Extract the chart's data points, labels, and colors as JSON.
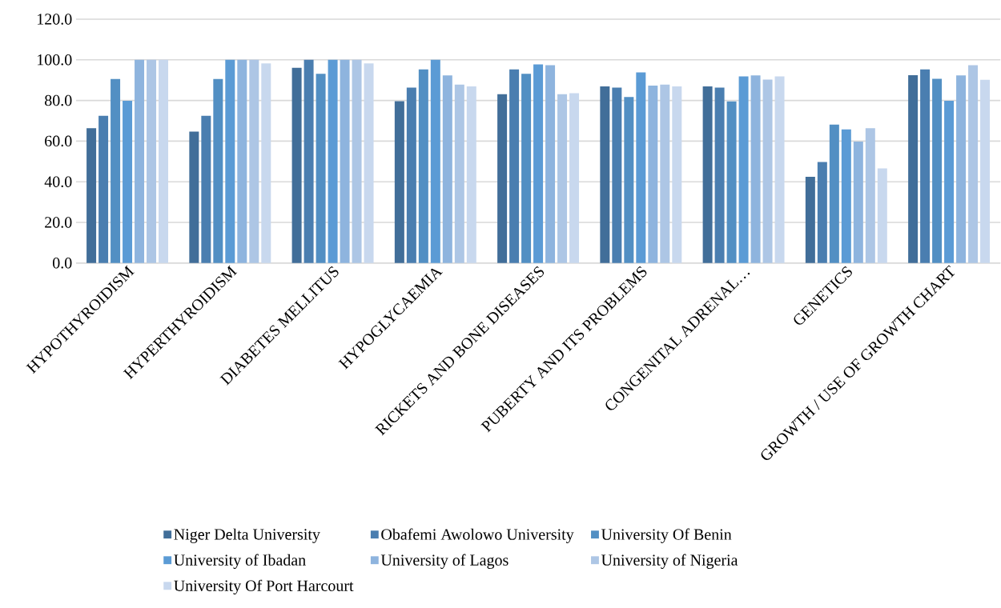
{
  "chart_data": {
    "type": "bar",
    "categories": [
      "HYPOTHYROIDISM",
      "HYPERTHYROIDISM",
      "DIABETES MELLITUS",
      "HYPOGLYCAEMIA",
      "RICKETS AND BONE DISEASES",
      "PUBERTY AND ITS PROBLEMS",
      "CONGENITAL ADRENAL…",
      "GENETICS",
      "GROWTH / USE OF GROWTH CHART"
    ],
    "series": [
      {
        "name": "Niger Delta University",
        "color": "#416e99",
        "values": [
          66.4,
          64.7,
          96.1,
          79.6,
          83.1,
          86.9,
          86.9,
          42.4,
          92.4
        ]
      },
      {
        "name": "Obafemi Awolowo University",
        "color": "#4a7eb0",
        "values": [
          72.5,
          72.5,
          100,
          86.3,
          95.3,
          86.3,
          86.3,
          49.7,
          95.3
        ]
      },
      {
        "name": "University Of Benin",
        "color": "#528fc3",
        "values": [
          90.6,
          90.6,
          93.1,
          95.3,
          93.1,
          81.7,
          79.5,
          68.1,
          90.7
        ]
      },
      {
        "name": "University of Ibadan",
        "color": "#5b9bd5",
        "values": [
          79.8,
          100,
          100,
          100,
          97.8,
          93.8,
          91.8,
          65.8,
          79.8
        ]
      },
      {
        "name": "University of Lagos",
        "color": "#8eb4de",
        "values": [
          100,
          100,
          100,
          92.3,
          97.4,
          87.3,
          92.3,
          59.8,
          92.3
        ]
      },
      {
        "name": "University of Nigeria",
        "color": "#adc6e5",
        "values": [
          100,
          100,
          100,
          87.8,
          83.1,
          87.8,
          90.3,
          66.4,
          97.4
        ]
      },
      {
        "name": "University Of Port Harcourt",
        "color": "#c8d8ee",
        "values": [
          100,
          98.2,
          98.2,
          86.9,
          83.6,
          86.9,
          91.8,
          46.6,
          90.2
        ]
      }
    ],
    "ylim": [
      0,
      120
    ],
    "yticks": [
      {
        "value": 0,
        "label": "0.0"
      },
      {
        "value": 20,
        "label": "20.0"
      },
      {
        "value": 40,
        "label": "40.0"
      },
      {
        "value": 60,
        "label": "60.0"
      },
      {
        "value": 80,
        "label": "80.0"
      },
      {
        "value": 100,
        "label": "100.0"
      },
      {
        "value": 120,
        "label": "120.0"
      }
    ],
    "grid": "y",
    "legend": "bottom"
  }
}
